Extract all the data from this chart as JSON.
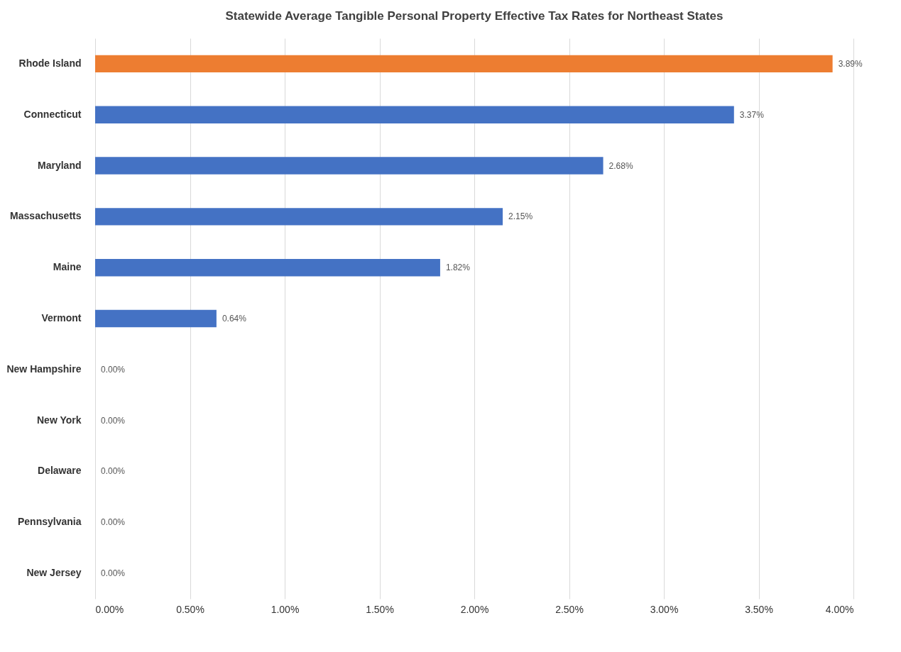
{
  "chart_data": {
    "type": "bar",
    "orientation": "horizontal",
    "title": "Statewide Average Tangible Personal Property Effective Tax Rates for Northeast States",
    "categories": [
      "Rhode Island",
      "Connecticut",
      "Maryland",
      "Massachusetts",
      "Maine",
      "Vermont",
      "New Hampshire",
      "New York",
      "Delaware",
      "Pennsylvania",
      "New Jersey"
    ],
    "values": [
      3.89,
      3.37,
      2.68,
      2.15,
      1.82,
      0.64,
      0,
      0,
      0,
      0,
      0
    ],
    "colors": [
      "#ed7d31",
      "#4472c4",
      "#4472c4",
      "#4472c4",
      "#4472c4",
      "#4472c4",
      "#4472c4",
      "#4472c4",
      "#4472c4",
      "#4472c4",
      "#4472c4"
    ],
    "value_labels": [
      "3.89%",
      "3.37%",
      "2.68%",
      "2.15%",
      "1.82%",
      "0.64%",
      "0.00%",
      "0.00%",
      "0.00%",
      "0.00%",
      "0.00%"
    ],
    "xlim": [
      0,
      4
    ],
    "xticks": [
      {
        "value": 0,
        "label": "0.00%"
      },
      {
        "value": 0.5,
        "label": "0.50%"
      },
      {
        "value": 1,
        "label": "1.00%"
      },
      {
        "value": 1.5,
        "label": "1.50%"
      },
      {
        "value": 2,
        "label": "2.00%"
      },
      {
        "value": 2.5,
        "label": "2.50%"
      },
      {
        "value": 3,
        "label": "3.00%"
      },
      {
        "value": 3.5,
        "label": "3.50%"
      },
      {
        "value": 4,
        "label": "4.00%"
      }
    ],
    "grid": "x"
  }
}
